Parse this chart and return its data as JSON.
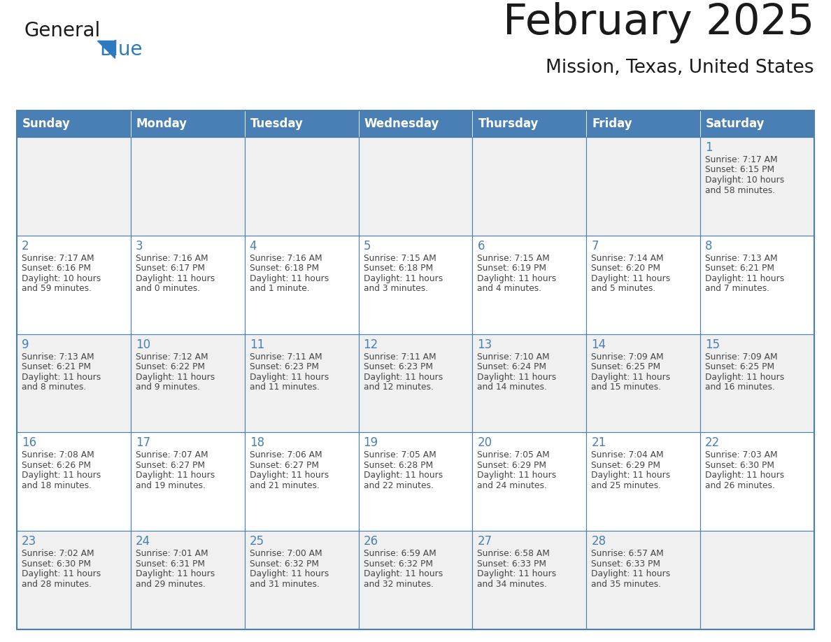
{
  "title": "February 2025",
  "subtitle": "Mission, Texas, United States",
  "header_bg": "#4a7fb5",
  "header_text_color": "#ffffff",
  "day_names": [
    "Sunday",
    "Monday",
    "Tuesday",
    "Wednesday",
    "Thursday",
    "Friday",
    "Saturday"
  ],
  "cell_bg_row0": "#f0f0f0",
  "cell_bg_row1": "#ffffff",
  "cell_bg_row2": "#f0f0f0",
  "cell_bg_row3": "#ffffff",
  "cell_bg_row4": "#f0f0f0",
  "cell_border_color": "#4a7fb5",
  "day_number_color": "#4a7fb5",
  "text_color": "#444444",
  "calendar_data": [
    [
      null,
      null,
      null,
      null,
      null,
      null,
      {
        "day": "1",
        "sunrise": "7:17 AM",
        "sunset": "6:15 PM",
        "daylight1": "10 hours",
        "daylight2": "and 58 minutes."
      }
    ],
    [
      {
        "day": "2",
        "sunrise": "7:17 AM",
        "sunset": "6:16 PM",
        "daylight1": "10 hours",
        "daylight2": "and 59 minutes."
      },
      {
        "day": "3",
        "sunrise": "7:16 AM",
        "sunset": "6:17 PM",
        "daylight1": "11 hours",
        "daylight2": "and 0 minutes."
      },
      {
        "day": "4",
        "sunrise": "7:16 AM",
        "sunset": "6:18 PM",
        "daylight1": "11 hours",
        "daylight2": "and 1 minute."
      },
      {
        "day": "5",
        "sunrise": "7:15 AM",
        "sunset": "6:18 PM",
        "daylight1": "11 hours",
        "daylight2": "and 3 minutes."
      },
      {
        "day": "6",
        "sunrise": "7:15 AM",
        "sunset": "6:19 PM",
        "daylight1": "11 hours",
        "daylight2": "and 4 minutes."
      },
      {
        "day": "7",
        "sunrise": "7:14 AM",
        "sunset": "6:20 PM",
        "daylight1": "11 hours",
        "daylight2": "and 5 minutes."
      },
      {
        "day": "8",
        "sunrise": "7:13 AM",
        "sunset": "6:21 PM",
        "daylight1": "11 hours",
        "daylight2": "and 7 minutes."
      }
    ],
    [
      {
        "day": "9",
        "sunrise": "7:13 AM",
        "sunset": "6:21 PM",
        "daylight1": "11 hours",
        "daylight2": "and 8 minutes."
      },
      {
        "day": "10",
        "sunrise": "7:12 AM",
        "sunset": "6:22 PM",
        "daylight1": "11 hours",
        "daylight2": "and 9 minutes."
      },
      {
        "day": "11",
        "sunrise": "7:11 AM",
        "sunset": "6:23 PM",
        "daylight1": "11 hours",
        "daylight2": "and 11 minutes."
      },
      {
        "day": "12",
        "sunrise": "7:11 AM",
        "sunset": "6:23 PM",
        "daylight1": "11 hours",
        "daylight2": "and 12 minutes."
      },
      {
        "day": "13",
        "sunrise": "7:10 AM",
        "sunset": "6:24 PM",
        "daylight1": "11 hours",
        "daylight2": "and 14 minutes."
      },
      {
        "day": "14",
        "sunrise": "7:09 AM",
        "sunset": "6:25 PM",
        "daylight1": "11 hours",
        "daylight2": "and 15 minutes."
      },
      {
        "day": "15",
        "sunrise": "7:09 AM",
        "sunset": "6:25 PM",
        "daylight1": "11 hours",
        "daylight2": "and 16 minutes."
      }
    ],
    [
      {
        "day": "16",
        "sunrise": "7:08 AM",
        "sunset": "6:26 PM",
        "daylight1": "11 hours",
        "daylight2": "and 18 minutes."
      },
      {
        "day": "17",
        "sunrise": "7:07 AM",
        "sunset": "6:27 PM",
        "daylight1": "11 hours",
        "daylight2": "and 19 minutes."
      },
      {
        "day": "18",
        "sunrise": "7:06 AM",
        "sunset": "6:27 PM",
        "daylight1": "11 hours",
        "daylight2": "and 21 minutes."
      },
      {
        "day": "19",
        "sunrise": "7:05 AM",
        "sunset": "6:28 PM",
        "daylight1": "11 hours",
        "daylight2": "and 22 minutes."
      },
      {
        "day": "20",
        "sunrise": "7:05 AM",
        "sunset": "6:29 PM",
        "daylight1": "11 hours",
        "daylight2": "and 24 minutes."
      },
      {
        "day": "21",
        "sunrise": "7:04 AM",
        "sunset": "6:29 PM",
        "daylight1": "11 hours",
        "daylight2": "and 25 minutes."
      },
      {
        "day": "22",
        "sunrise": "7:03 AM",
        "sunset": "6:30 PM",
        "daylight1": "11 hours",
        "daylight2": "and 26 minutes."
      }
    ],
    [
      {
        "day": "23",
        "sunrise": "7:02 AM",
        "sunset": "6:30 PM",
        "daylight1": "11 hours",
        "daylight2": "and 28 minutes."
      },
      {
        "day": "24",
        "sunrise": "7:01 AM",
        "sunset": "6:31 PM",
        "daylight1": "11 hours",
        "daylight2": "and 29 minutes."
      },
      {
        "day": "25",
        "sunrise": "7:00 AM",
        "sunset": "6:32 PM",
        "daylight1": "11 hours",
        "daylight2": "and 31 minutes."
      },
      {
        "day": "26",
        "sunrise": "6:59 AM",
        "sunset": "6:32 PM",
        "daylight1": "11 hours",
        "daylight2": "and 32 minutes."
      },
      {
        "day": "27",
        "sunrise": "6:58 AM",
        "sunset": "6:33 PM",
        "daylight1": "11 hours",
        "daylight2": "and 34 minutes."
      },
      {
        "day": "28",
        "sunrise": "6:57 AM",
        "sunset": "6:33 PM",
        "daylight1": "11 hours",
        "daylight2": "and 35 minutes."
      },
      null
    ]
  ]
}
